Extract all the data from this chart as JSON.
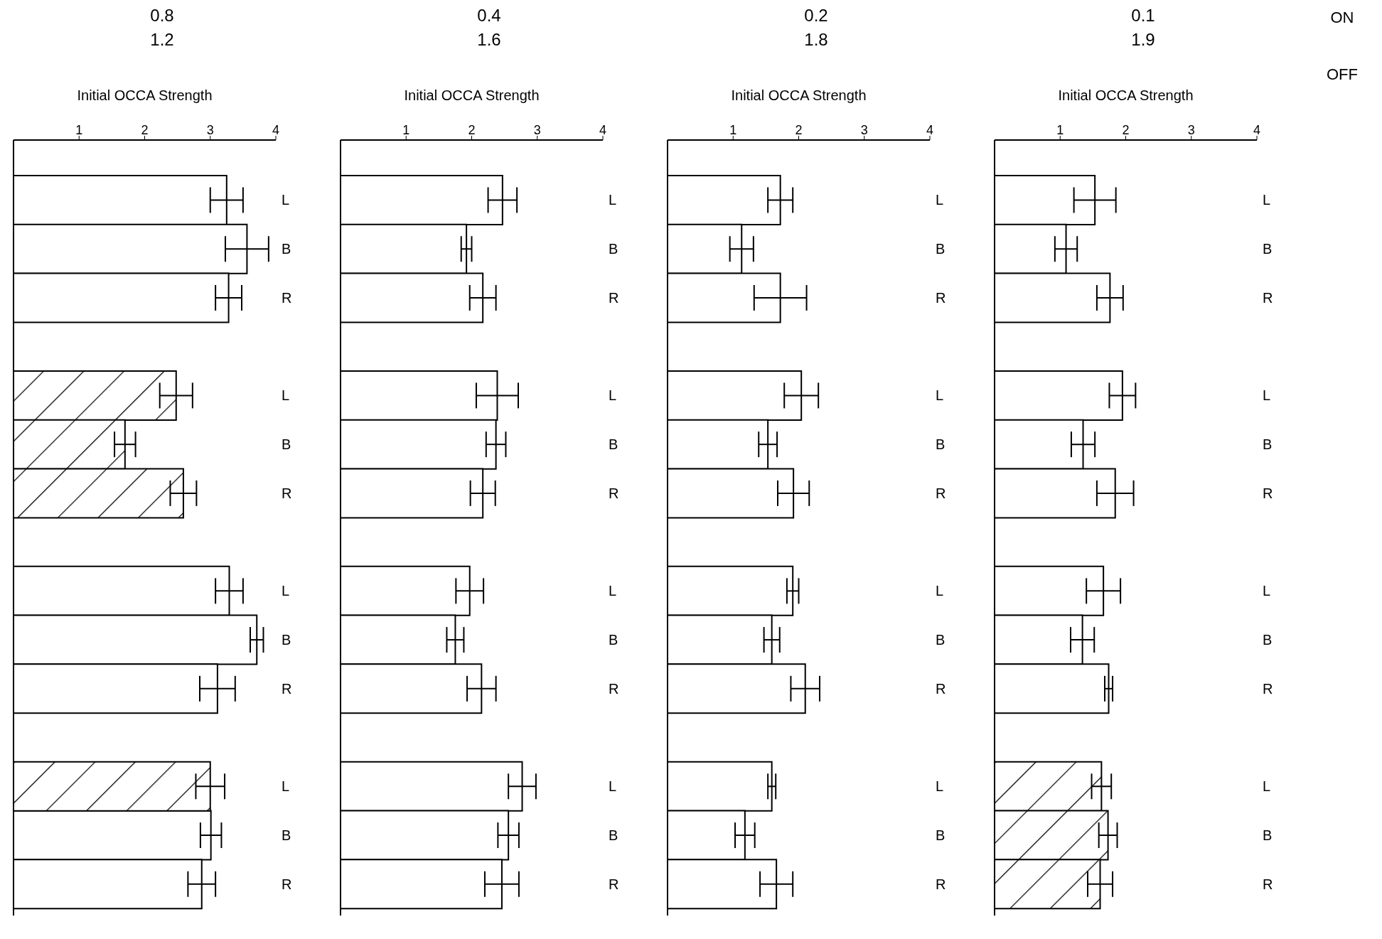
{
  "chart_data": [
    {
      "type": "bar",
      "orientation": "horizontal",
      "stacked": true,
      "title": "0.8",
      "subtitle": "1.2",
      "xlabel": "Initial OCCA Strength",
      "categories": [
        "L",
        "B",
        "R",
        null,
        "L",
        "B",
        "R",
        null,
        "L",
        "B",
        "R",
        null,
        "L",
        "B",
        "R"
      ],
      "xlim": [
        0,
        4
      ],
      "xticks": [
        1,
        2,
        3,
        4
      ],
      "series": [
        {
          "color": "#ffffff",
          "values": [
            3.25,
            3.56,
            3.28,
            null,
            null,
            null,
            null,
            null,
            3.29,
            3.71,
            3.11,
            null,
            null,
            3.01,
            2.87
          ],
          "errors": [
            0.25,
            0.33,
            0.2,
            null,
            null,
            null,
            null,
            null,
            0.21,
            0.1,
            0.27,
            null,
            null,
            0.16,
            0.21
          ]
        },
        {
          "color": "#000000",
          "values": [
            null,
            null,
            null,
            null,
            2.48,
            1.7,
            2.59,
            null,
            null,
            null,
            null,
            null,
            3.0,
            null,
            null
          ],
          "errors": [
            null,
            null,
            null,
            null,
            0.25,
            0.16,
            0.2,
            null,
            null,
            null,
            null,
            null,
            0.22,
            null,
            null
          ]
        }
      ]
    },
    {
      "type": "bar",
      "orientation": "horizontal",
      "stacked": true,
      "title": "0.4",
      "subtitle": "1.6",
      "xlabel": "Initial OCCA Strength",
      "categories": [
        "L",
        "B",
        "R",
        null,
        "L",
        "B",
        "R",
        null,
        "L",
        "B",
        "R",
        null,
        "L",
        "B",
        "R"
      ],
      "xlim": [
        0,
        4
      ],
      "xticks": [
        1,
        2,
        3,
        4
      ],
      "series": [
        {
          "color": "#ffffff",
          "values": [
            2.47,
            1.92,
            2.17,
            null,
            2.39,
            2.37,
            2.17,
            null,
            1.97,
            1.75,
            2.15,
            null,
            2.77,
            2.56,
            2.46
          ],
          "errors": [
            0.22,
            0.08,
            0.2,
            null,
            0.32,
            0.15,
            0.19,
            null,
            0.21,
            0.13,
            0.22,
            null,
            0.21,
            0.16,
            0.26
          ]
        }
      ]
    },
    {
      "type": "bar",
      "orientation": "horizontal",
      "stacked": true,
      "title": "0.2",
      "subtitle": "1.8",
      "xlabel": "Initial OCCA Strength",
      "categories": [
        "L",
        "B",
        "R",
        null,
        "L",
        "B",
        "R",
        null,
        "L",
        "B",
        "R",
        null,
        "L",
        "B",
        "R"
      ],
      "xlim": [
        0,
        4
      ],
      "xticks": [
        1,
        2,
        3,
        4
      ],
      "series": [
        {
          "color": "#ffffff",
          "values": [
            1.72,
            1.13,
            1.72,
            null,
            2.04,
            1.53,
            1.92,
            null,
            1.91,
            1.59,
            2.1,
            null,
            1.59,
            1.18,
            1.66
          ],
          "errors": [
            0.19,
            0.18,
            0.4,
            null,
            0.26,
            0.14,
            0.24,
            null,
            0.09,
            0.12,
            0.22,
            null,
            0.06,
            0.15,
            0.25
          ]
        }
      ]
    },
    {
      "type": "bar",
      "orientation": "horizontal",
      "stacked": true,
      "title": "0.1",
      "subtitle": "1.9",
      "xlabel": "Initial OCCA Strength",
      "categories": [
        "L",
        "B",
        "R",
        null,
        "L",
        "B",
        "R",
        null,
        "L",
        "B",
        "R",
        null,
        "L",
        "B",
        "R"
      ],
      "xlim": [
        0,
        4
      ],
      "xticks": [
        1,
        2,
        3,
        4
      ],
      "series": [
        {
          "color": "#ffffff",
          "values": [
            1.53,
            1.09,
            1.76,
            null,
            1.95,
            1.35,
            1.84,
            null,
            1.66,
            1.34,
            1.74,
            null,
            null,
            null,
            null
          ],
          "errors": [
            0.32,
            0.17,
            0.2,
            null,
            0.2,
            0.18,
            0.28,
            null,
            0.26,
            0.18,
            0.06,
            null,
            null,
            null,
            null
          ]
        },
        {
          "color": "#000000",
          "values": [
            null,
            null,
            null,
            null,
            null,
            null,
            null,
            null,
            null,
            null,
            null,
            null,
            1.63,
            1.73,
            1.61
          ],
          "errors": [
            null,
            null,
            null,
            null,
            null,
            null,
            null,
            null,
            null,
            null,
            null,
            null,
            0.15,
            0.14,
            0.19
          ]
        }
      ]
    },
    {
      "type": "other",
      "annotations": [
        "ON",
        "OFF"
      ]
    }
  ]
}
